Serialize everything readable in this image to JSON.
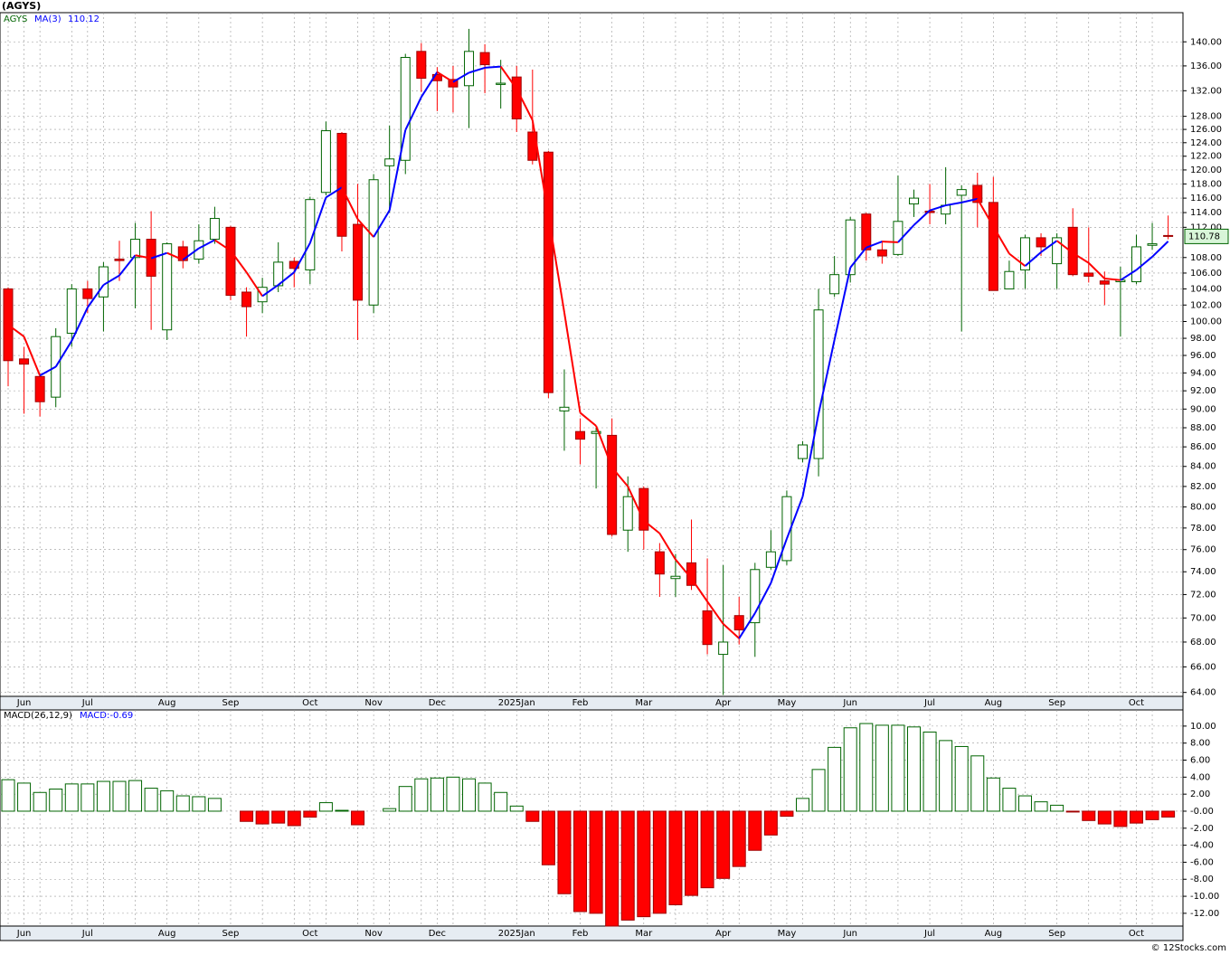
{
  "chart_data": [
    {
      "type": "candlestick",
      "title": "(AGYS)",
      "symbol": "AGYS",
      "log_scale": true,
      "grid": true,
      "up_color": "#006400",
      "down_color": "#ff0000",
      "categories": [
        null,
        "Jun",
        null,
        null,
        null,
        "Jul",
        null,
        null,
        null,
        null,
        "Aug",
        null,
        null,
        null,
        "Sep",
        null,
        null,
        null,
        null,
        "Oct",
        null,
        null,
        null,
        "Nov",
        null,
        null,
        null,
        "Dec",
        null,
        null,
        null,
        null,
        "2025Jan",
        null,
        null,
        null,
        "Feb",
        null,
        null,
        null,
        "Mar",
        null,
        null,
        null,
        null,
        "Apr",
        null,
        null,
        null,
        "May",
        null,
        null,
        null,
        "Jun",
        null,
        null,
        null,
        null,
        "Jul",
        null,
        null,
        null,
        "Aug",
        null,
        null,
        null,
        "Sep",
        null,
        null,
        null,
        null,
        "Oct",
        null,
        null
      ],
      "open": [
        104,
        95.6,
        93.6,
        91.3,
        98.6,
        104,
        103,
        107.8,
        108,
        110.4,
        99,
        109.4,
        107.8,
        110.4,
        112,
        103.6,
        102.4,
        104.4,
        107.5,
        106.4,
        116.8,
        125.4,
        112.4,
        102,
        120.6,
        121.4,
        138.4,
        134.6,
        133.8,
        132.8,
        138.2,
        133,
        134.2,
        125.6,
        122.6,
        89.8,
        87.6,
        87.4,
        87.2,
        77.8,
        81.8,
        75.8,
        73.4,
        74.8,
        70.6,
        67,
        70.2,
        69.6,
        74.4,
        75,
        84.8,
        84.8,
        103.4,
        105.8,
        113.8,
        109,
        108.4,
        115.2,
        114.2,
        113.8,
        116.4,
        117.8,
        115.4,
        104,
        106.4,
        110.6,
        107.2,
        112,
        106,
        105,
        104.9,
        104.9,
        109.6,
        110.9
      ],
      "high": [
        104.2,
        97,
        94,
        99.2,
        104.6,
        105,
        107.4,
        110.2,
        112.6,
        114.2,
        110,
        110.2,
        112.4,
        114.8,
        112.2,
        104.2,
        105.4,
        110,
        108,
        116.2,
        127.2,
        125.6,
        118,
        119.4,
        126.6,
        138,
        139.8,
        135.8,
        136,
        142.2,
        139.6,
        137,
        136,
        135.4,
        122.8,
        94.4,
        89,
        88,
        89,
        83,
        82,
        76.6,
        75.6,
        78.8,
        75.2,
        74.6,
        71.8,
        74.8,
        77.8,
        81.6,
        86.6,
        104,
        108.2,
        113.4,
        114,
        110.2,
        119.2,
        117.2,
        118,
        120.4,
        117.8,
        119.6,
        119,
        107.6,
        111,
        111.2,
        111.2,
        114.6,
        112,
        106.2,
        106.8,
        111,
        112.6,
        113.6
      ],
      "low": [
        92.5,
        89.5,
        89.2,
        90.2,
        97,
        101,
        98.8,
        105,
        101.6,
        99,
        97.8,
        106.6,
        107.2,
        109.8,
        102.6,
        98.2,
        101,
        103.6,
        104.2,
        104.6,
        116.4,
        108.8,
        97.8,
        101,
        114,
        119.4,
        131.8,
        128.8,
        128.6,
        126.2,
        131.6,
        129.2,
        125.6,
        120.8,
        91.2,
        85.6,
        84.2,
        81.8,
        77.2,
        75.8,
        76,
        71.8,
        71.8,
        72.4,
        67,
        63.8,
        67.8,
        66.8,
        74.2,
        74.6,
        84.4,
        83,
        103,
        104.8,
        107.6,
        107.2,
        108.2,
        113.4,
        112.4,
        112.4,
        98.8,
        112,
        103.8,
        104.2,
        104,
        108.2,
        104,
        105.6,
        104.8,
        102,
        98.2,
        104.6,
        109,
        110.4
      ],
      "close": [
        95.4,
        95,
        90.8,
        98.2,
        104,
        102.8,
        106.8,
        107.6,
        110.4,
        105.6,
        109.8,
        107.6,
        110.2,
        113.2,
        103.2,
        101.8,
        104.2,
        107.4,
        106.6,
        115.8,
        125.8,
        110.8,
        102.6,
        118.6,
        121.6,
        137.4,
        134,
        133.6,
        132.6,
        138.4,
        136.2,
        133.2,
        127.6,
        121.4,
        91.8,
        90.2,
        86.8,
        87.6,
        77.4,
        81,
        77.8,
        73.8,
        73.6,
        72.8,
        67.8,
        68,
        69,
        74.2,
        75.8,
        81,
        86.2,
        101.4,
        105.8,
        113,
        109,
        108.2,
        112.8,
        116,
        114,
        115,
        117.2,
        115.4,
        103.8,
        106.2,
        110.6,
        109.4,
        110.6,
        105.8,
        105.6,
        104.6,
        105.1,
        109.4,
        109.8,
        110.78
      ],
      "series": [
        {
          "name": "MA(3)",
          "color": "#0000ff",
          "down_color": "#ff0000",
          "values": [
            99.6,
            98.2,
            93.7,
            94.7,
            97.7,
            101.7,
            104.5,
            105.7,
            108.3,
            107.9,
            108.6,
            107.7,
            109.2,
            110.3,
            108.9,
            106.1,
            103.1,
            104.5,
            106.1,
            109.9,
            116.1,
            117.5,
            113.1,
            110.7,
            114.3,
            125.9,
            131,
            135,
            133.4,
            134.9,
            135.7,
            135.9,
            132.3,
            127.4,
            113.6,
            101.1,
            89.6,
            88.2,
            83.9,
            82,
            78.7,
            77.5,
            75.1,
            73.4,
            71.4,
            69.5,
            68.3,
            70.4,
            73,
            77,
            81,
            89.5,
            97.8,
            106.7,
            109.3,
            110.1,
            110,
            112.3,
            114.3,
            115,
            115.4,
            115.9,
            112.1,
            108.5,
            106.9,
            108.7,
            110.2,
            108.6,
            107.3,
            105.3,
            105.1,
            106.4,
            108.1,
            110.12
          ]
        }
      ],
      "ylim": [
        63.7,
        145
      ],
      "yticks": [
        {
          "value": 64,
          "label": "64.00"
        },
        {
          "value": 66,
          "label": "66.00"
        },
        {
          "value": 68,
          "label": "68.00"
        },
        {
          "value": 70,
          "label": "70.00"
        },
        {
          "value": 72,
          "label": "72.00"
        },
        {
          "value": 74,
          "label": "74.00"
        },
        {
          "value": 76,
          "label": "76.00"
        },
        {
          "value": 78,
          "label": "78.00"
        },
        {
          "value": 80,
          "label": "80.00"
        },
        {
          "value": 82,
          "label": "82.00"
        },
        {
          "value": 84,
          "label": "84.00"
        },
        {
          "value": 86,
          "label": "86.00"
        },
        {
          "value": 88,
          "label": "88.00"
        },
        {
          "value": 90,
          "label": "90.00"
        },
        {
          "value": 92,
          "label": "92.00"
        },
        {
          "value": 94,
          "label": "94.00"
        },
        {
          "value": 96,
          "label": "96.00"
        },
        {
          "value": 98,
          "label": "98.00"
        },
        {
          "value": 100,
          "label": "100.00"
        },
        {
          "value": 102,
          "label": "102.00"
        },
        {
          "value": 104,
          "label": "104.00"
        },
        {
          "value": 106,
          "label": "106.00"
        },
        {
          "value": 108,
          "label": "108.00"
        },
        {
          "value": 112,
          "label": "112.00"
        },
        {
          "value": 114,
          "label": "114.00"
        },
        {
          "value": 116,
          "label": "116.00"
        },
        {
          "value": 118,
          "label": "118.00"
        },
        {
          "value": 120,
          "label": "120.00"
        },
        {
          "value": 122,
          "label": "122.00"
        },
        {
          "value": 124,
          "label": "124.00"
        },
        {
          "value": 126,
          "label": "126.00"
        },
        {
          "value": 128,
          "label": "128.00"
        },
        {
          "value": 132,
          "label": "132.00"
        },
        {
          "value": 136,
          "label": "136.00"
        },
        {
          "value": 140,
          "label": "140.00"
        }
      ]
    },
    {
      "type": "bar",
      "title": "MACD(26,12,9)",
      "legend": "MACD:-0.69",
      "grid": true,
      "up_color": "#006400",
      "down_color": "#ff0000",
      "categories": [
        null,
        "Jun",
        null,
        null,
        null,
        "Jul",
        null,
        null,
        null,
        null,
        "Aug",
        null,
        null,
        null,
        "Sep",
        null,
        null,
        null,
        null,
        "Oct",
        null,
        null,
        null,
        "Nov",
        null,
        null,
        null,
        "Dec",
        null,
        null,
        null,
        null,
        "2025Jan",
        null,
        null,
        null,
        "Feb",
        null,
        null,
        null,
        "Mar",
        null,
        null,
        null,
        null,
        "Apr",
        null,
        null,
        null,
        "May",
        null,
        null,
        null,
        "Jun",
        null,
        null,
        null,
        null,
        "Jul",
        null,
        null,
        null,
        "Aug",
        null,
        null,
        null,
        "Sep",
        null,
        null,
        null,
        null,
        "Oct",
        null,
        null
      ],
      "values": [
        3.7,
        3.3,
        2.2,
        2.6,
        3.2,
        3.2,
        3.5,
        3.5,
        3.6,
        2.7,
        2.4,
        1.8,
        1.7,
        1.5,
        0,
        -1.2,
        -1.5,
        -1.4,
        -1.7,
        -0.7,
        1,
        0.1,
        -1.6,
        0,
        0.3,
        2.9,
        3.8,
        3.9,
        4,
        3.8,
        3.3,
        2.2,
        0.6,
        -1.2,
        -6.3,
        -9.7,
        -11.8,
        -12,
        -13.5,
        -12.8,
        -12.4,
        -12,
        -11,
        -9.9,
        -9,
        -7.9,
        -6.5,
        -4.6,
        -2.8,
        -0.6,
        1.5,
        4.9,
        7.5,
        9.8,
        10.3,
        10.1,
        10.1,
        9.9,
        9.3,
        8.3,
        7.6,
        6.5,
        3.9,
        2.7,
        1.8,
        1.1,
        0.7,
        -0.1,
        -1.1,
        -1.5,
        -1.8,
        -1.4,
        -1,
        -0.69
      ],
      "ylim": [
        -13.5,
        11.9
      ],
      "yticks": [
        {
          "value": 10,
          "label": "10.00"
        },
        {
          "value": 8,
          "label": "8.00"
        },
        {
          "value": 6,
          "label": "6.00"
        },
        {
          "value": 4,
          "label": "4.00"
        },
        {
          "value": 2,
          "label": "2.00"
        },
        {
          "value": 0,
          "label": "-0.00"
        },
        {
          "value": -2,
          "label": "-2.00"
        },
        {
          "value": -4,
          "label": "-4.00"
        },
        {
          "value": -6,
          "label": "-6.00"
        },
        {
          "value": -8,
          "label": "-8.00"
        },
        {
          "value": -10,
          "label": "-10.00"
        },
        {
          "value": -12,
          "label": "-12.00"
        }
      ]
    }
  ],
  "footer": "© 12Stocks.com"
}
